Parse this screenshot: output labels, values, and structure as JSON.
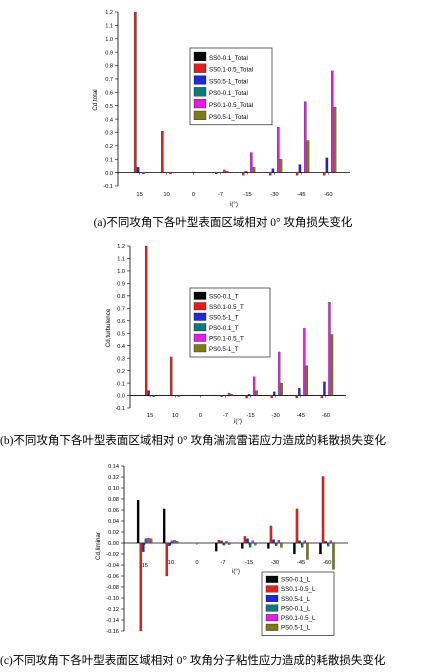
{
  "colors": {
    "SS0-0.1": "#000000",
    "SS0.1-0.5": "#e0201c",
    "SS0.5-1": "#1f2ad6",
    "PS0-0.1": "#107a7a",
    "PS0.1-0.5": "#e020e0",
    "PS0.5-1": "#7b7b1a"
  },
  "captions": {
    "a": "(a)不同攻角下各叶型表面区域相对 0° 攻角损失变化",
    "b": "(b)不同攻角下各叶型表面区域相对 0° 攻角湍流雷诺应力造成的耗散损失变化",
    "c": "(c)不同攻角下各叶型表面区域相对 0° 攻角分子粘性应力造成的耗散损失变化"
  },
  "chart_data": [
    {
      "type": "bar",
      "id": "a",
      "ylabel": "Cd,total",
      "xlabel": "i(°)",
      "ylim": [
        -0.1,
        1.2
      ],
      "yticks": [
        "1.2",
        "1.1",
        "1.0",
        "0.9",
        "0.8",
        "0.7",
        "0.6",
        "0.5",
        "0.4",
        "0.3",
        "0.2",
        "0.1",
        "0.0",
        "-0.1"
      ],
      "categories": [
        "15",
        "10",
        "0",
        "-7",
        "-15",
        "-30",
        "-45",
        "-60"
      ],
      "legend_position": "upper-right",
      "series": [
        {
          "name": "SS0-0.1_Total",
          "key": "SS0-0.1",
          "values": [
            0.0,
            0.0,
            0.0,
            0.0,
            0.0,
            0.0,
            0.0,
            0.0
          ]
        },
        {
          "name": "SS0.1-0.5_Total",
          "key": "SS0.1-0.5",
          "values": [
            1.2,
            0.31,
            0.0,
            -0.01,
            -0.02,
            -0.02,
            -0.02,
            -0.02
          ]
        },
        {
          "name": "SS0.5-1_Total",
          "key": "SS0.5-1",
          "values": [
            0.04,
            0.0,
            0.0,
            0.0,
            0.01,
            0.03,
            0.06,
            0.11
          ]
        },
        {
          "name": "PS0-0.1_Total",
          "key": "PS0-0.1",
          "values": [
            0.0,
            0.0,
            0.0,
            0.0,
            0.0,
            0.0,
            0.0,
            0.0
          ]
        },
        {
          "name": "PS0.1-0.5_Total",
          "key": "PS0.1-0.5",
          "values": [
            -0.01,
            -0.01,
            0.0,
            0.02,
            0.15,
            0.34,
            0.53,
            0.76
          ]
        },
        {
          "name": "PS0.5-1_Total",
          "key": "PS0.5-1",
          "values": [
            0.0,
            0.0,
            0.0,
            0.01,
            0.04,
            0.1,
            0.24,
            0.49
          ]
        }
      ]
    },
    {
      "type": "bar",
      "id": "b",
      "ylabel": "Cd,turbulence",
      "xlabel": "i(°)",
      "ylim": [
        -0.1,
        1.2
      ],
      "yticks": [
        "1.2",
        "1.1",
        "1.0",
        "0.9",
        "0.8",
        "0.7",
        "0.6",
        "0.5",
        "0.4",
        "0.3",
        "0.2",
        "0.1",
        "0.0",
        "-0.1"
      ],
      "categories": [
        "15",
        "10",
        "0",
        "-7",
        "-15",
        "-30",
        "-45",
        "-60"
      ],
      "legend_position": "upper-right",
      "series": [
        {
          "name": "SS0-0.1_T",
          "key": "SS0-0.1",
          "values": [
            0.0,
            0.0,
            0.0,
            0.0,
            0.0,
            0.0,
            0.0,
            0.0
          ]
        },
        {
          "name": "SS0.1-0.5_T",
          "key": "SS0.1-0.5",
          "values": [
            1.2,
            0.31,
            0.0,
            -0.01,
            -0.02,
            -0.02,
            -0.02,
            -0.02
          ]
        },
        {
          "name": "SS0.5-1_T",
          "key": "SS0.5-1",
          "values": [
            0.04,
            0.0,
            0.0,
            0.0,
            0.01,
            0.03,
            0.06,
            0.11
          ]
        },
        {
          "name": "PS0-0.1_T",
          "key": "PS0-0.1",
          "values": [
            0.0,
            0.0,
            0.0,
            0.0,
            0.0,
            0.0,
            0.0,
            0.0
          ]
        },
        {
          "name": "PS0.1-0.5_T",
          "key": "PS0.1-0.5",
          "values": [
            -0.01,
            -0.01,
            0.0,
            0.02,
            0.15,
            0.35,
            0.54,
            0.75
          ]
        },
        {
          "name": "PS0.5-1_T",
          "key": "PS0.5-1",
          "values": [
            0.0,
            0.0,
            0.0,
            0.01,
            0.04,
            0.1,
            0.24,
            0.49
          ]
        }
      ]
    },
    {
      "type": "bar",
      "id": "c",
      "ylabel": "Cd,liminar",
      "xlabel": "i(°)",
      "ylim": [
        -0.16,
        0.14
      ],
      "yticks": [
        "0.14",
        "0.12",
        "0.10",
        "0.08",
        "0.06",
        "0.04",
        "0.02",
        "0.00",
        "-0.02",
        "-0.04",
        "-0.06",
        "-0.08",
        "-0.10",
        "-0.12",
        "-0.14",
        "-0.16"
      ],
      "categories": [
        "15",
        "10",
        "0",
        "-7",
        "-15",
        "-30",
        "-45",
        "-60"
      ],
      "legend_position": "lower-right",
      "series": [
        {
          "name": "SS0-0.1_L",
          "key": "SS0-0.1",
          "values": [
            0.078,
            0.062,
            0.0,
            -0.015,
            -0.01,
            -0.01,
            -0.02,
            -0.02
          ]
        },
        {
          "name": "SS0.1-0.5_L",
          "key": "SS0.1-0.5",
          "values": [
            -0.16,
            -0.06,
            0.0,
            0.005,
            0.012,
            0.031,
            0.062,
            0.121
          ]
        },
        {
          "name": "SS0.5-1_L",
          "key": "SS0.5-1",
          "values": [
            -0.016,
            -0.005,
            0.0,
            0.004,
            0.008,
            0.006,
            0.004,
            0.003
          ]
        },
        {
          "name": "PS0-0.1_L",
          "key": "PS0-0.1",
          "values": [
            0.008,
            0.004,
            0.0,
            -0.004,
            -0.008,
            -0.005,
            -0.008,
            -0.006
          ]
        },
        {
          "name": "PS0.1-0.5_L",
          "key": "PS0.1-0.5",
          "values": [
            0.009,
            0.005,
            0.0,
            0.003,
            0.004,
            0.005,
            0.004,
            0.004
          ]
        },
        {
          "name": "PS0.5-1_L",
          "key": "PS0.5-1",
          "values": [
            0.008,
            0.003,
            0.0,
            -0.003,
            -0.004,
            -0.008,
            -0.03,
            -0.048
          ]
        }
      ]
    }
  ]
}
